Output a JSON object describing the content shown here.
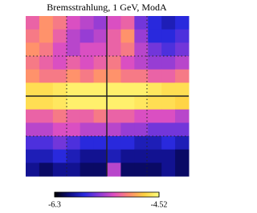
{
  "chart_data": {
    "type": "heatmap",
    "title": "Bremsstrahlung, 1 GeV, ModA",
    "values": [
      [
        -5.2,
        -5.0,
        -5.1,
        -5.3,
        -5.4,
        -5.5,
        -5.3,
        -5.2,
        -5.6,
        -5.8,
        -5.9,
        -5.8
      ],
      [
        -5.1,
        -5.0,
        -5.2,
        -5.4,
        -5.5,
        -5.4,
        -5.2,
        -5.0,
        -5.5,
        -5.8,
        -5.8,
        -5.7
      ],
      [
        -5.0,
        -5.1,
        -5.3,
        -5.4,
        -5.3,
        -5.3,
        -5.2,
        -5.1,
        -5.4,
        -5.6,
        -5.7,
        -5.6
      ],
      [
        -5.1,
        -5.2,
        -5.3,
        -5.2,
        -5.3,
        -5.2,
        -5.1,
        -5.3,
        -5.4,
        -5.5,
        -5.5,
        -5.4
      ],
      [
        -5.0,
        -5.1,
        -5.1,
        -5.0,
        -5.1,
        -5.0,
        -5.0,
        -5.1,
        -5.1,
        -5.2,
        -5.2,
        -5.1
      ],
      [
        -4.7,
        -4.7,
        -4.65,
        -4.6,
        -4.6,
        -4.6,
        -4.6,
        -4.6,
        -4.6,
        -4.65,
        -4.7,
        -4.7
      ],
      [
        -4.7,
        -4.7,
        -4.65,
        -4.6,
        -4.6,
        -4.6,
        -4.6,
        -4.6,
        -4.65,
        -4.7,
        -4.7,
        -4.75
      ],
      [
        -5.2,
        -5.2,
        -5.1,
        -5.2,
        -5.2,
        -5.1,
        -5.2,
        -5.2,
        -5.3,
        -5.3,
        -5.3,
        -5.4
      ],
      [
        -5.4,
        -5.4,
        -5.3,
        -5.3,
        -5.4,
        -5.4,
        -5.4,
        -5.5,
        -5.5,
        -5.6,
        -5.6,
        -5.6
      ],
      [
        -5.7,
        -5.7,
        -5.6,
        -5.7,
        -5.8,
        -5.8,
        -5.8,
        -5.8,
        -5.9,
        -5.9,
        -5.8,
        -5.9
      ],
      [
        -5.9,
        -5.9,
        -5.8,
        -5.9,
        -6.0,
        -6.0,
        -5.9,
        -6.0,
        -6.0,
        -6.0,
        -6.0,
        -6.1
      ],
      [
        -6.0,
        -6.1,
        -6.0,
        -6.0,
        -6.1,
        -6.1,
        -5.4,
        -6.1,
        -6.1,
        -6.1,
        -6.0,
        -6.1
      ]
    ],
    "zlim": [
      -6.3,
      -4.52
    ],
    "colorbar_ticks": [
      -6.3,
      -4.52
    ],
    "colormap": [
      "#000000",
      "#0d0d80",
      "#2a2ae0",
      "#8a3ad8",
      "#e050c0",
      "#ff8a70",
      "#ffd040",
      "#ffff80"
    ]
  }
}
